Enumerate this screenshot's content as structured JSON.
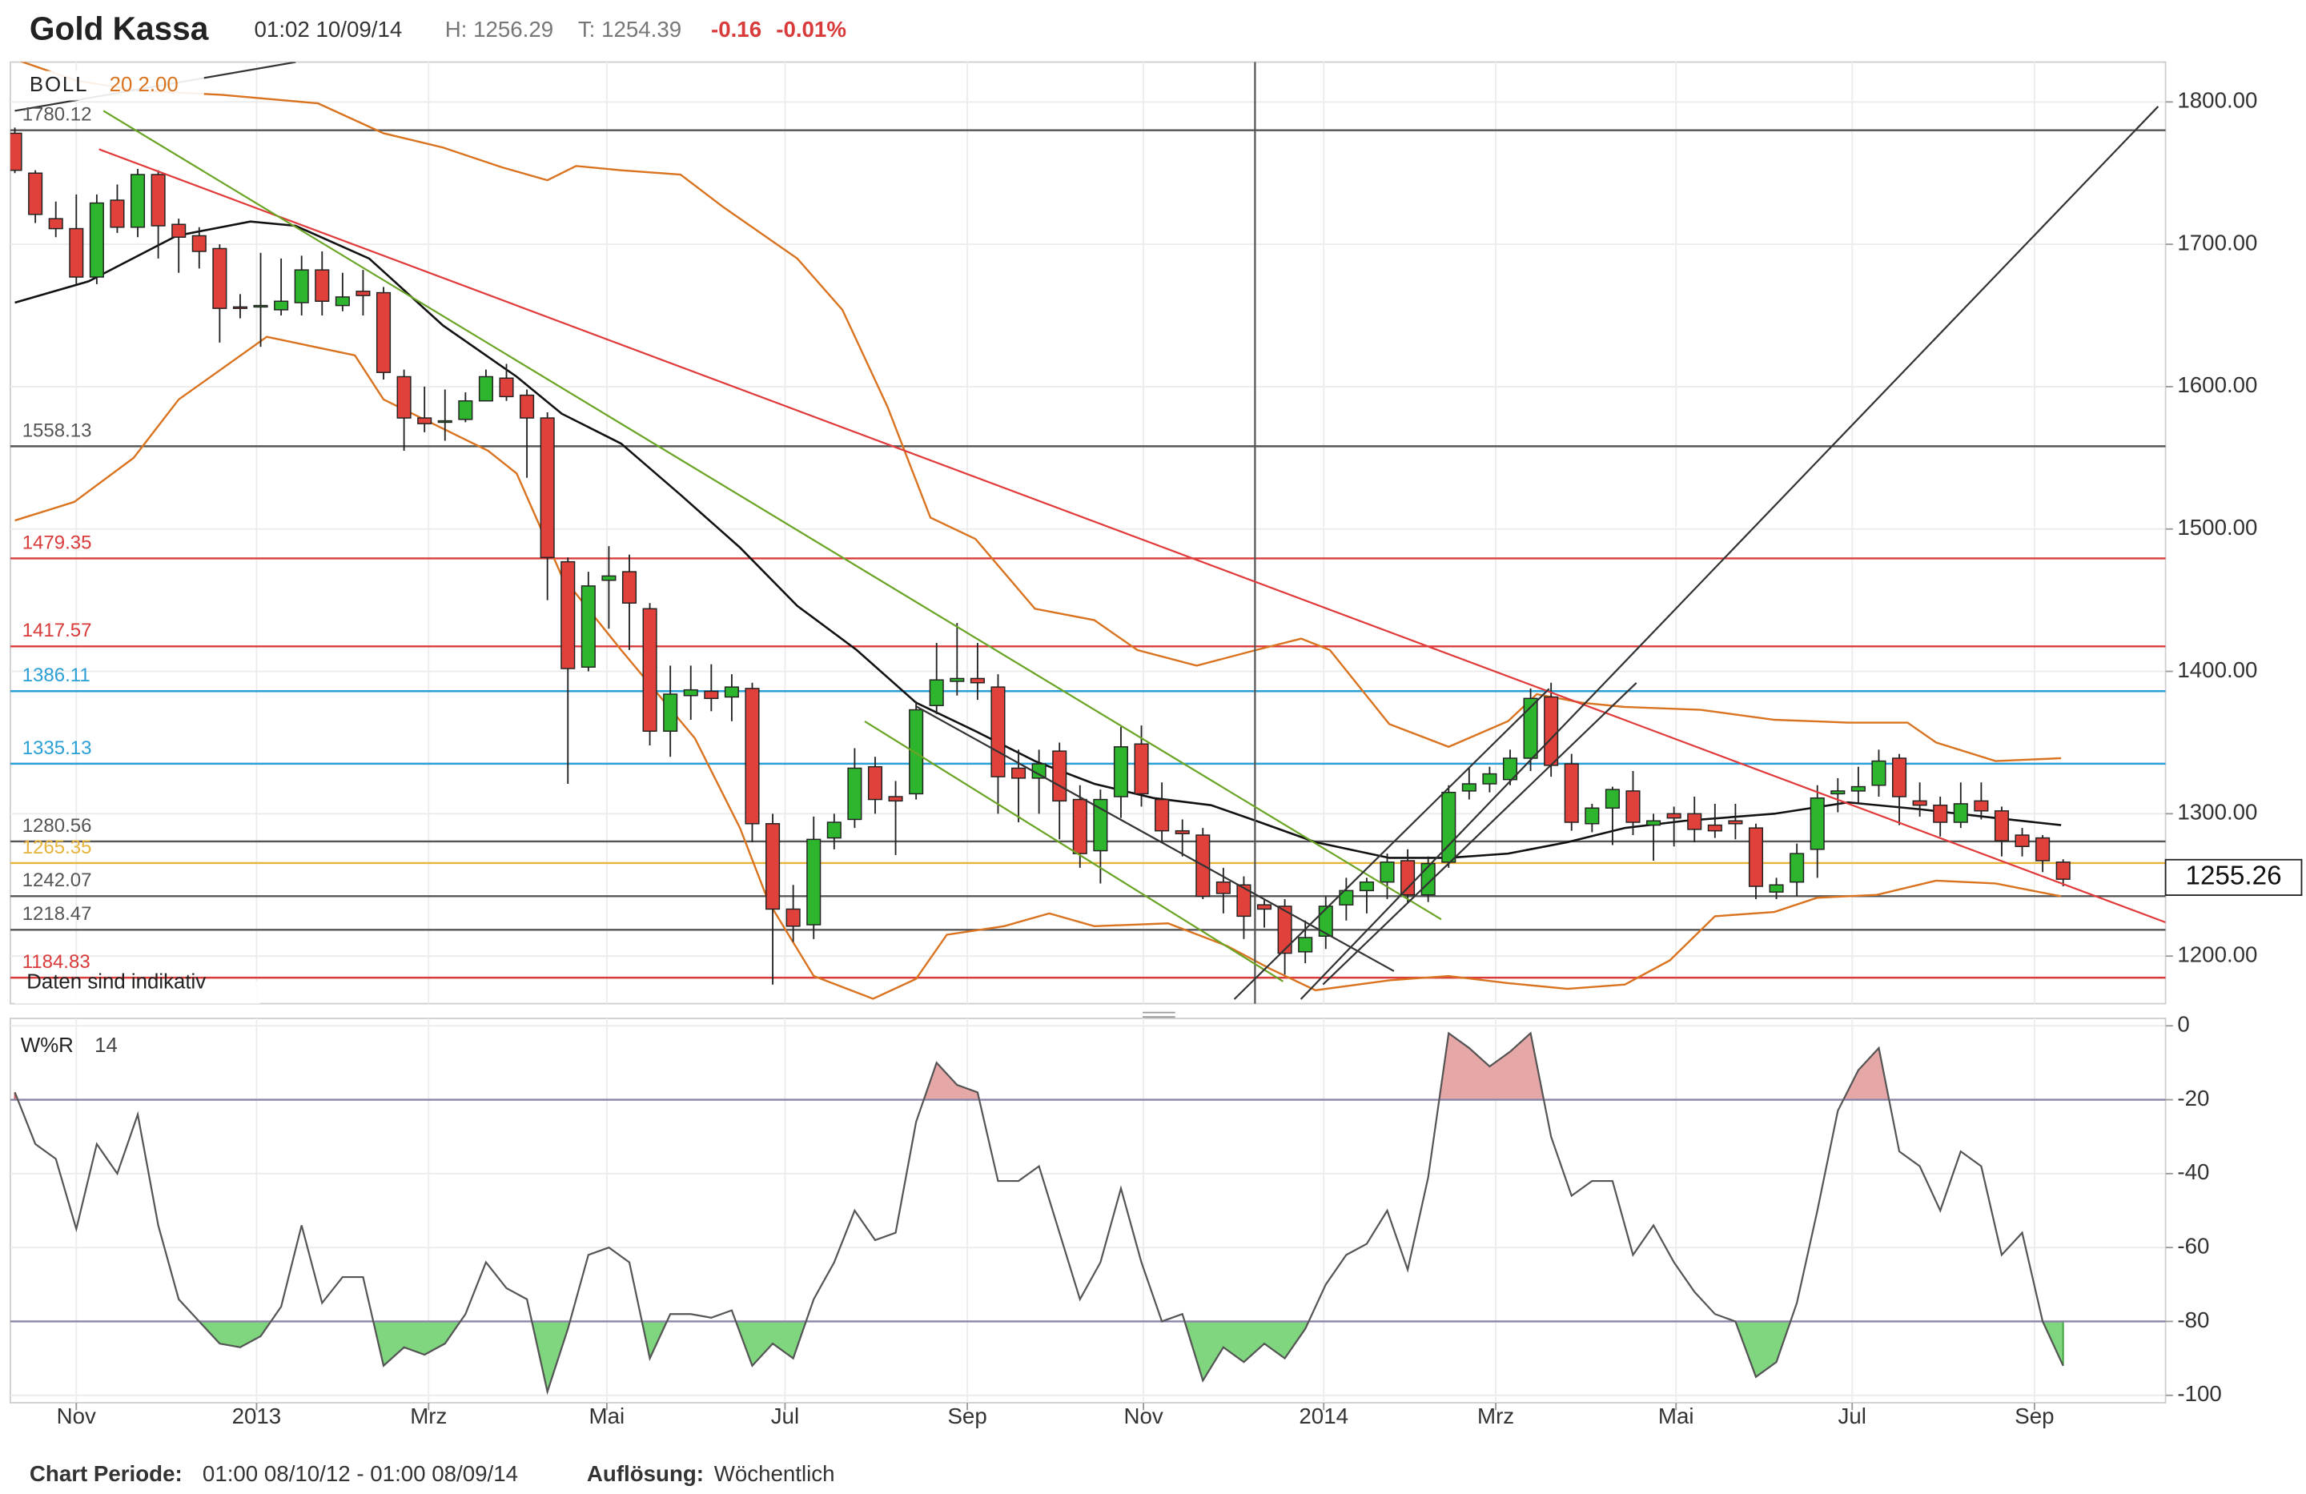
{
  "header": {
    "title": "Gold Kassa",
    "time": "01:02 10/09/14",
    "high": "H: 1256.29",
    "low": "T: 1254.39",
    "change": "-0.16",
    "change_pct": "-0.01%"
  },
  "footer": {
    "period_label": "Chart Periode:",
    "period": "01:00 08/10/12 - 01:00 08/09/14",
    "resolution_label": "Auflösung:",
    "resolution": "Wöchentlich"
  },
  "chart_data": [
    {
      "type": "candlestick",
      "legend": {
        "name": "BOLL",
        "params": "20 2.00"
      },
      "note": "Daten sind indikativ",
      "x": [
        0,
        1,
        2,
        3,
        4,
        5,
        6,
        7,
        8,
        9,
        10,
        11,
        12,
        13,
        14,
        15,
        16,
        17,
        18,
        19,
        20,
        21,
        22,
        23,
        24,
        25,
        26,
        27,
        28,
        29,
        30,
        31,
        32,
        33,
        34,
        35,
        36,
        37,
        38,
        39,
        40,
        41,
        42,
        43,
        44,
        45,
        46,
        47,
        48,
        49,
        50,
        51,
        52,
        53,
        54,
        55,
        56,
        57,
        58,
        59,
        60,
        61,
        62,
        63,
        64,
        65,
        66,
        67,
        68,
        69,
        70,
        71,
        72,
        73,
        74,
        75,
        76,
        77,
        78,
        79,
        80,
        81,
        82,
        83,
        84,
        85,
        86,
        87,
        88,
        89,
        90,
        91,
        92,
        93,
        94,
        95,
        96,
        97,
        98,
        99,
        100
      ],
      "open": [
        1778,
        1750,
        1718,
        1711,
        1677,
        1731,
        1712,
        1749,
        1714,
        1706,
        1697,
        1656,
        1656,
        1654,
        1659,
        1682,
        1657,
        1667,
        1666,
        1607,
        1578,
        1575,
        1577,
        1590,
        1606,
        1594,
        1578,
        1477,
        1403,
        1464,
        1470,
        1444,
        1358,
        1383,
        1386,
        1382,
        1388,
        1293,
        1233,
        1222,
        1283,
        1296,
        1333,
        1312,
        1314,
        1376,
        1393,
        1395,
        1389,
        1332,
        1325,
        1344,
        1310,
        1274,
        1312,
        1349,
        1310,
        1288,
        1285,
        1252,
        1250,
        1236,
        1235,
        1203,
        1214,
        1236,
        1246,
        1252,
        1267,
        1243,
        1266,
        1316,
        1321,
        1324,
        1339,
        1382,
        1335,
        1293,
        1304,
        1316,
        1292,
        1300,
        1300,
        1292,
        1295,
        1290,
        1245,
        1252,
        1275,
        1314,
        1316,
        1320,
        1339,
        1309,
        1306,
        1294,
        1309,
        1302,
        1285,
        1283,
        1266
      ],
      "high": [
        1782,
        1752,
        1730,
        1735,
        1735,
        1742,
        1753,
        1752,
        1718,
        1712,
        1700,
        1665,
        1694,
        1690,
        1692,
        1695,
        1680,
        1682,
        1670,
        1612,
        1600,
        1598,
        1596,
        1612,
        1616,
        1598,
        1582,
        1480,
        1470,
        1488,
        1482,
        1448,
        1404,
        1404,
        1405,
        1398,
        1392,
        1300,
        1250,
        1298,
        1300,
        1346,
        1340,
        1323,
        1379,
        1420,
        1434,
        1420,
        1398,
        1345,
        1345,
        1350,
        1320,
        1317,
        1361,
        1362,
        1322,
        1296,
        1290,
        1262,
        1256,
        1240,
        1240,
        1225,
        1242,
        1255,
        1255,
        1272,
        1275,
        1270,
        1320,
        1332,
        1333,
        1345,
        1388,
        1392,
        1342,
        1307,
        1319,
        1330,
        1300,
        1305,
        1312,
        1307,
        1307,
        1293,
        1255,
        1279,
        1320,
        1325,
        1333,
        1345,
        1342,
        1322,
        1312,
        1322,
        1322,
        1305,
        1290,
        1285,
        1268
      ],
      "low": [
        1750,
        1715,
        1705,
        1672,
        1672,
        1708,
        1705,
        1690,
        1680,
        1683,
        1631,
        1648,
        1628,
        1650,
        1650,
        1650,
        1653,
        1650,
        1605,
        1555,
        1568,
        1562,
        1575,
        1590,
        1590,
        1536,
        1450,
        1321,
        1400,
        1430,
        1415,
        1348,
        1340,
        1366,
        1372,
        1365,
        1280,
        1180,
        1210,
        1212,
        1275,
        1290,
        1300,
        1271,
        1310,
        1370,
        1383,
        1380,
        1300,
        1294,
        1300,
        1282,
        1262,
        1251,
        1297,
        1305,
        1280,
        1270,
        1240,
        1230,
        1212,
        1220,
        1187,
        1195,
        1205,
        1225,
        1230,
        1240,
        1237,
        1238,
        1262,
        1310,
        1315,
        1320,
        1330,
        1326,
        1288,
        1287,
        1278,
        1285,
        1267,
        1277,
        1280,
        1283,
        1282,
        1240,
        1240,
        1242,
        1255,
        1301,
        1308,
        1312,
        1292,
        1298,
        1284,
        1290,
        1296,
        1270,
        1270,
        1259,
        1249
      ],
      "close": [
        1752,
        1721,
        1711,
        1677,
        1729,
        1712,
        1749,
        1713,
        1705,
        1695,
        1655,
        1655,
        1657,
        1660,
        1682,
        1660,
        1663,
        1664,
        1610,
        1578,
        1574,
        1576,
        1590,
        1607,
        1593,
        1578,
        1480,
        1402,
        1460,
        1467,
        1448,
        1358,
        1384,
        1387,
        1381,
        1389,
        1293,
        1233,
        1221,
        1282,
        1294,
        1332,
        1310,
        1309,
        1373,
        1394,
        1395,
        1392,
        1326,
        1325,
        1335,
        1309,
        1272,
        1310,
        1347,
        1314,
        1288,
        1286,
        1242,
        1244,
        1228,
        1233,
        1202,
        1213,
        1235,
        1246,
        1252,
        1266,
        1243,
        1265,
        1315,
        1321,
        1328,
        1339,
        1381,
        1334,
        1294,
        1304,
        1317,
        1294,
        1295,
        1297,
        1289,
        1288,
        1293,
        1249,
        1250,
        1272,
        1311,
        1316,
        1319,
        1337,
        1312,
        1306,
        1294,
        1307,
        1302,
        1281,
        1277,
        1267,
        1254
      ],
      "up_color": "#2db52d",
      "down_color": "#e0413a",
      "bollinger": {
        "color": "#d9731f",
        "upper": {
          "x": [
            0,
            3,
            6,
            10.1,
            14.8,
            18,
            20.9,
            23.8,
            26,
            27.4,
            29.6,
            32.5,
            34.6,
            38.2,
            40.4,
            42.6,
            44.7,
            46.9,
            49.8,
            52.7,
            54.8,
            57.7,
            60.6,
            62.8,
            64.2,
            67.1,
            70,
            72.9,
            74.3,
            76.5,
            78.6,
            82.3,
            85.9,
            89.5,
            92.4,
            93.8,
            96.7,
            99.9
          ],
          "values": [
            1830,
            1815,
            1808,
            1805,
            1799,
            1778,
            1768,
            1754,
            1745,
            1755,
            1752,
            1749,
            1726,
            1690,
            1654,
            1586,
            1508,
            1493,
            1444,
            1436,
            1415,
            1404,
            1415,
            1423,
            1415,
            1363,
            1347,
            1365,
            1384,
            1378,
            1375,
            1373,
            1366,
            1364,
            1364,
            1350,
            1337,
            1339
          ]
        },
        "lower": {
          "x": [
            0,
            2.9,
            5.8,
            8,
            12.3,
            16.6,
            18,
            23.1,
            24.5,
            26.7,
            29.6,
            33.2,
            35.4,
            36.8,
            39,
            41.9,
            44,
            45.5,
            48.3,
            50.5,
            52.7,
            56.3,
            59.2,
            61.3,
            63.5,
            67.1,
            70,
            72.9,
            75.8,
            78.6,
            80.8,
            83,
            85.9,
            88,
            90.9,
            93.8,
            96.7,
            99.9
          ],
          "values": [
            1506,
            1519,
            1550,
            1591,
            1635,
            1622,
            1591,
            1555,
            1539,
            1467,
            1415,
            1353,
            1290,
            1238,
            1186,
            1170,
            1184,
            1215,
            1221,
            1230,
            1221,
            1223,
            1207,
            1191,
            1176,
            1183,
            1186,
            1181,
            1177,
            1180,
            1197,
            1228,
            1231,
            1241,
            1243,
            1253,
            1251,
            1242
          ]
        }
      },
      "moving_average": {
        "color": "#111111",
        "x": [
          0,
          3.6,
          7.9,
          11.5,
          13.7,
          17.3,
          20.9,
          24.5,
          26.7,
          29.6,
          32.5,
          35.4,
          38.2,
          41.1,
          44,
          46.9,
          49.8,
          52.7,
          55.6,
          58.4,
          60.6,
          63.5,
          67.1,
          70,
          72.9,
          75.8,
          78.6,
          81.5,
          85.9,
          89.5,
          93.1,
          96.7,
          99.9
        ],
        "values": [
          1659,
          1674,
          1706,
          1716,
          1713,
          1690,
          1643,
          1607,
          1581,
          1560,
          1524,
          1487,
          1446,
          1415,
          1378,
          1358,
          1337,
          1321,
          1311,
          1306,
          1295,
          1280,
          1269,
          1269,
          1272,
          1280,
          1290,
          1295,
          1300,
          1308,
          1303,
          1297,
          1292
        ]
      },
      "levels": [
        {
          "value": 1780.12,
          "color": "#555555"
        },
        {
          "value": 1558.13,
          "color": "#555555"
        },
        {
          "value": 1479.35,
          "color": "#d93a3a"
        },
        {
          "value": 1417.57,
          "color": "#d93a3a"
        },
        {
          "value": 1386.11,
          "color": "#2a9fd6"
        },
        {
          "value": 1335.13,
          "color": "#2a9fd6"
        },
        {
          "value": 1280.56,
          "color": "#555555"
        },
        {
          "value": 1265.35,
          "color": "#e6b43c"
        },
        {
          "value": 1242.07,
          "color": "#555555"
        },
        {
          "value": 1218.47,
          "color": "#555555"
        },
        {
          "value": 1184.83,
          "color": "#d93a3a"
        }
      ],
      "last_price": 1255.26,
      "xlim": [
        -0.22,
        105
      ],
      "xticks": [
        {
          "value": 3.0,
          "label": "Nov"
        },
        {
          "value": 11.8,
          "label": "2013"
        },
        {
          "value": 20.2,
          "label": "Mrz"
        },
        {
          "value": 28.9,
          "label": "Mai"
        },
        {
          "value": 37.6,
          "label": "Jul"
        },
        {
          "value": 46.5,
          "label": "Sep"
        },
        {
          "value": 55.1,
          "label": "Nov"
        },
        {
          "value": 63.9,
          "label": "2014"
        },
        {
          "value": 72.3,
          "label": "Mrz"
        },
        {
          "value": 81.1,
          "label": "Mai"
        },
        {
          "value": 89.7,
          "label": "Jul"
        },
        {
          "value": 98.6,
          "label": "Sep"
        }
      ],
      "ylim": [
        1166.6,
        1828
      ],
      "yticks": [
        {
          "value": 1200,
          "label": "1200.00"
        },
        {
          "value": 1300,
          "label": "1300.00"
        },
        {
          "value": 1400,
          "label": "1400.00"
        },
        {
          "value": 1500,
          "label": "1500.00"
        },
        {
          "value": 1600,
          "label": "1600.00"
        },
        {
          "value": 1700,
          "label": "1700.00"
        },
        {
          "value": 1800,
          "label": "1800.00"
        }
      ],
      "grid": true
    },
    {
      "type": "line",
      "legend": {
        "name": "W%R",
        "params": "14"
      },
      "x": [
        0,
        1,
        2,
        3,
        4,
        5,
        6,
        7,
        8,
        9,
        10,
        11,
        12,
        13,
        14,
        15,
        16,
        17,
        18,
        19,
        20,
        21,
        22,
        23,
        24,
        25,
        26,
        27,
        28,
        29,
        30,
        31,
        32,
        33,
        34,
        35,
        36,
        37,
        38,
        39,
        40,
        41,
        42,
        43,
        44,
        45,
        46,
        47,
        48,
        49,
        50,
        51,
        52,
        53,
        54,
        55,
        56,
        57,
        58,
        59,
        60,
        61,
        62,
        63,
        64,
        65,
        66,
        67,
        68,
        69,
        70,
        71,
        72,
        73,
        74,
        75,
        76,
        77,
        78,
        79,
        80,
        81,
        82,
        83,
        84,
        85,
        86,
        87,
        88,
        89,
        90,
        91,
        92,
        93,
        94,
        95,
        96,
        97,
        98,
        99,
        100
      ],
      "values": [
        -18,
        -32,
        -36,
        -55,
        -32,
        -40,
        -24,
        -54,
        -74,
        -80,
        -86,
        -87,
        -84,
        -76,
        -54,
        -75,
        -68,
        -68,
        -92,
        -87,
        -89,
        -86,
        -78,
        -64,
        -71,
        -74,
        -99,
        -82,
        -62,
        -60,
        -64,
        -90,
        -78,
        -78,
        -79,
        -77,
        -92,
        -86,
        -90,
        -74,
        -64,
        -50,
        -58,
        -56,
        -26,
        -10,
        -16,
        -18,
        -42,
        -42,
        -38,
        -56,
        -74,
        -64,
        -44,
        -64,
        -80,
        -78,
        -96,
        -87,
        -91,
        -86,
        -90,
        -82,
        -70,
        -62,
        -59,
        -50,
        -66,
        -41,
        -2,
        -6,
        -11,
        -7,
        -2,
        -30,
        -46,
        -42,
        -42,
        -62,
        -54,
        -64,
        -72,
        -78,
        -80,
        -95,
        -91,
        -75,
        -50,
        -23,
        -12,
        -6,
        -34,
        -38,
        -50,
        -34,
        -38,
        -62,
        -56,
        -80,
        -92
      ],
      "color": "#555555",
      "levels": [
        {
          "value": -20,
          "color": "#8a84a8",
          "zone": "above",
          "fill": "#e6a7a7",
          "edge": "#d05a5a"
        },
        {
          "value": -80,
          "color": "#8a84a8",
          "zone": "below",
          "fill": "#7fd67f",
          "edge": "#3aa03a"
        }
      ],
      "xlim": [
        -0.22,
        105
      ],
      "xticks": [
        {
          "value": 3.0,
          "label": "Nov"
        },
        {
          "value": 11.8,
          "label": "2013"
        },
        {
          "value": 20.2,
          "label": "Mrz"
        },
        {
          "value": 28.9,
          "label": "Mai"
        },
        {
          "value": 37.6,
          "label": "Jul"
        },
        {
          "value": 46.5,
          "label": "Sep"
        },
        {
          "value": 55.1,
          "label": "Nov"
        },
        {
          "value": 63.9,
          "label": "2014"
        },
        {
          "value": 72.3,
          "label": "Mrz"
        },
        {
          "value": 81.1,
          "label": "Mai"
        },
        {
          "value": 89.7,
          "label": "Jul"
        },
        {
          "value": 98.6,
          "label": "Sep"
        }
      ],
      "ylim": [
        -102,
        2
      ],
      "yticks": [
        0,
        -20,
        -40,
        -60,
        -80,
        -100
      ],
      "grid": true
    }
  ]
}
